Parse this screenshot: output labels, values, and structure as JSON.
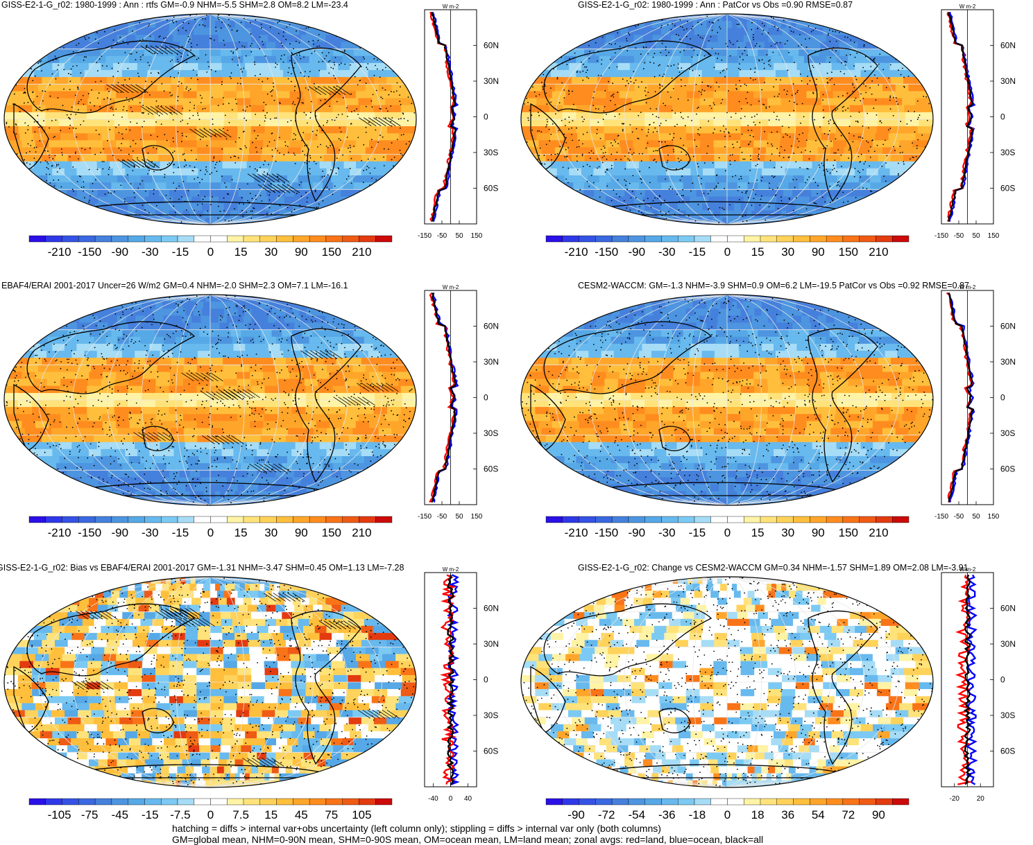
{
  "colors": {
    "coast": "#000000",
    "land_zonal": "#ff0000",
    "ocean_zonal": "#0000ff",
    "all_zonal": "#000000"
  },
  "footer": {
    "line1": "hatching = diffs > internal var+obs uncertainty (left column only); stippling = diffs > internal var only (both columns)",
    "line2": "GM=global mean, NHM=0-90N mean, SHM=0-90S mean, OM=ocean mean, LM=land mean; zonal avgs: red=land, blue=ocean, black=all"
  },
  "panels": [
    {
      "title": "GISS-E2-1-G_r02: 1980-1999 : Ann : rtfs GM=-0.9 NHM=-5.5 SHM=2.8 OM=8.2 LM=-23.4",
      "type": "mean",
      "hatching": true,
      "colorbar_labels": [
        "-210",
        "-150",
        "-90",
        "-30",
        "-15",
        "0",
        "15",
        "30",
        "90",
        "150",
        "210"
      ],
      "zonal_unit": "W m-2",
      "zonal_xticks": [
        "-150",
        "-50",
        "50",
        "150"
      ],
      "zonal_xrange": [
        -150,
        150
      ],
      "lat_labels": [
        "60N",
        "30N",
        "0",
        "30S",
        "60S"
      ]
    },
    {
      "title": "GISS-E2-1-G_r02: 1980-1999 : Ann : PatCor vs Obs =0.90 RMSE=0.87",
      "type": "mean",
      "hatching": false,
      "colorbar_labels": [
        "-210",
        "-150",
        "-90",
        "-30",
        "-15",
        "0",
        "15",
        "30",
        "90",
        "150",
        "210"
      ],
      "zonal_unit": "W m-2",
      "zonal_xticks": [
        "-150",
        "-50",
        "50",
        "150"
      ],
      "zonal_xrange": [
        -150,
        150
      ],
      "lat_labels": [
        "60N",
        "30N",
        "0",
        "30S",
        "60S"
      ]
    },
    {
      "title": "EBAF4/ERAI 2001-2017 Uncer=26 W/m2 GM=0.4 NHM=-2.0 SHM=2.3 OM=7.1 LM=-16.1",
      "type": "mean",
      "hatching": true,
      "colorbar_labels": [
        "-210",
        "-150",
        "-90",
        "-30",
        "-15",
        "0",
        "15",
        "30",
        "90",
        "150",
        "210"
      ],
      "zonal_unit": "W m-2",
      "zonal_xticks": [
        "-150",
        "-50",
        "50",
        "150"
      ],
      "zonal_xrange": [
        -150,
        150
      ],
      "lat_labels": [
        "60N",
        "30N",
        "0",
        "30S",
        "60S"
      ]
    },
    {
      "title": "CESM2-WACCM: GM=-1.3 NHM=-3.9 SHM=0.9 OM=6.2 LM=-19.5 PatCor vs Obs =0.92 RMSE=0.87",
      "type": "mean",
      "hatching": false,
      "colorbar_labels": [
        "-210",
        "-150",
        "-90",
        "-30",
        "-15",
        "0",
        "15",
        "30",
        "90",
        "150",
        "210"
      ],
      "zonal_unit": "W m-2",
      "zonal_xticks": [
        "-150",
        "-50",
        "50",
        "150"
      ],
      "zonal_xrange": [
        -150,
        150
      ],
      "lat_labels": [
        "60N",
        "30N",
        "0",
        "30S",
        "60S"
      ]
    },
    {
      "title": "GISS-E2-1-G_r02: Bias vs EBAF4/ERAI 2001-2017 GM=-1.31 NHM=-3.47 SHM=0.45 OM=1.13 LM=-7.28",
      "type": "bias",
      "hatching": true,
      "colorbar_labels": [
        "-105",
        "-75",
        "-45",
        "-15",
        "-7.5",
        "0",
        "7.5",
        "15",
        "45",
        "75",
        "105"
      ],
      "zonal_unit": "W m-2",
      "zonal_xticks": [
        "-40",
        "0",
        "40"
      ],
      "zonal_xrange": [
        -60,
        60
      ],
      "lat_labels": [
        "60N",
        "30N",
        "0",
        "30S",
        "60S"
      ]
    },
    {
      "title": "GISS-E2-1-G_r02: Change vs CESM2-WACCM GM=0.34 NHM=-1.57 SHM=1.89 OM=2.08 LM=-3.91",
      "type": "change",
      "hatching": false,
      "colorbar_labels": [
        "-90",
        "-72",
        "-54",
        "-36",
        "-18",
        "0",
        "18",
        "36",
        "54",
        "72",
        "90"
      ],
      "zonal_unit": "W m-2",
      "zonal_xticks": [
        "-20",
        "20"
      ],
      "zonal_xrange": [
        -40,
        40
      ],
      "lat_labels": [
        "60N",
        "30N",
        "0",
        "30S",
        "60S"
      ]
    }
  ],
  "chart_data": [
    {
      "type": "heatmap",
      "title": "GISS-E2-1-G_r02: 1980-1999 : Ann : rtfs GM=-0.9 NHM=-5.5 SHM=2.8 OM=8.2 LM=-23.4"
    },
    {
      "type": "heatmap",
      "title": "GISS-E2-1-G_r02: 1980-1999 : Ann : PatCor vs Obs =0.90 RMSE=0.87"
    },
    {
      "type": "heatmap",
      "title": "EBAF4/ERAI 2001-2017 Uncer=26 W/m2 GM=0.4 NHM=-2.0 SHM=2.3 OM=7.1 LM=-16.1"
    },
    {
      "type": "heatmap",
      "title": "CESM2-WACCM: GM=-1.3 NHM=-3.9 SHM=0.9 OM=6.2 LM=-19.5 PatCor vs Obs =0.92 RMSE=0.87"
    },
    {
      "type": "heatmap",
      "title": "GISS-E2-1-G_r02: Bias vs EBAF4/ERAI 2001-2017 GM=-1.31 NHM=-3.47 SHM=0.45 OM=1.13 LM=-7.28"
    },
    {
      "type": "heatmap",
      "title": "GISS-E2-1-G_r02: Change vs CESM2-WACCM GM=0.34 NHM=-1.57 SHM=1.89 OM=2.08 LM=-3.91"
    }
  ]
}
